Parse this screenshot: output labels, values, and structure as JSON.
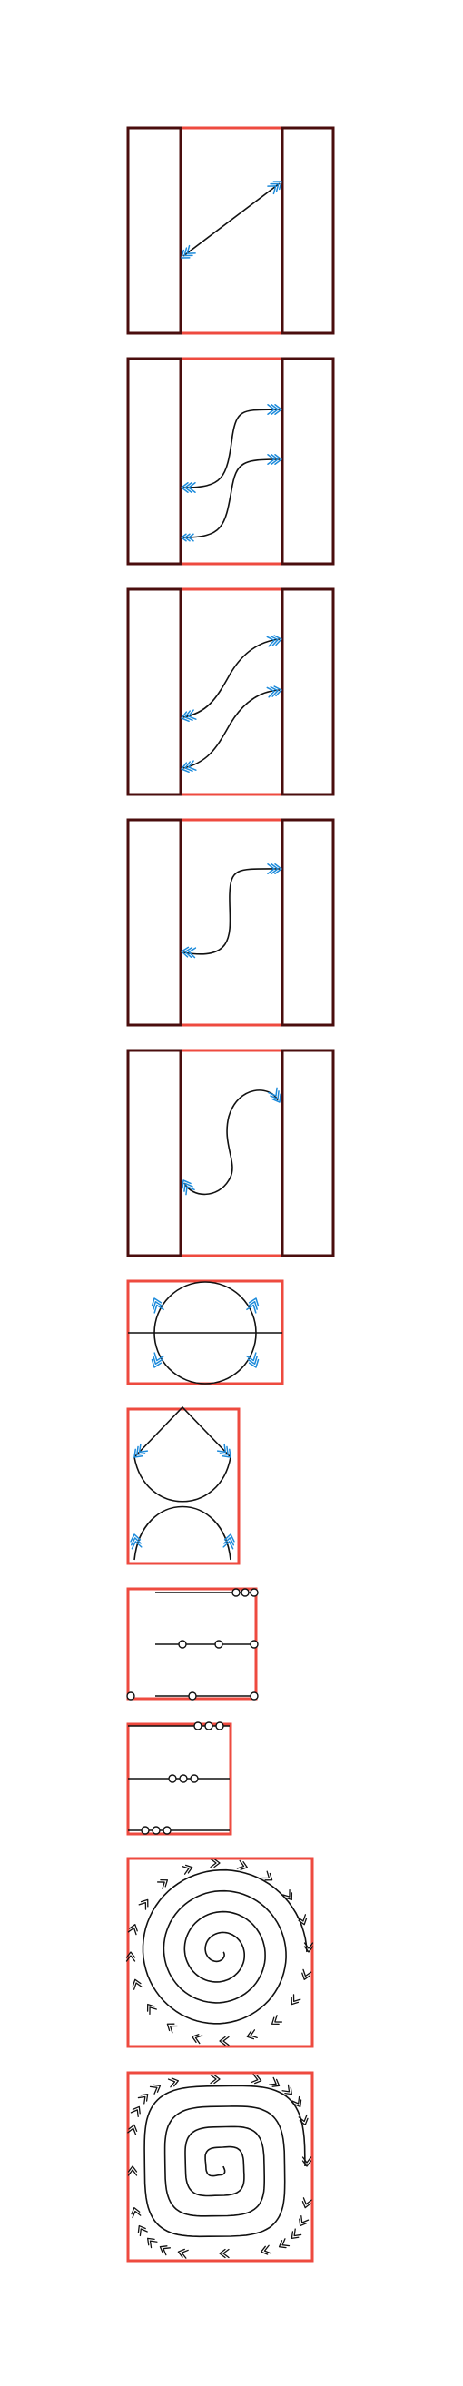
{
  "colors": {
    "frame_red": "#ee4a3f",
    "frame_dark": "#4a0d0d",
    "curve": "#111111",
    "arrow_blue": "#1d8bdb",
    "arrow_black": "#111111",
    "marker_fill": "#ffffff"
  },
  "figure": {
    "panel_count": 11,
    "panels": [
      {
        "kind": "curve-between-rails",
        "arrow_color": "blue",
        "arrow_ends": 2
      },
      {
        "kind": "two-s-curves-between-rails",
        "arrow_color": "blue",
        "arrow_ends": 4
      },
      {
        "kind": "two-sine-curves-between-rails",
        "arrow_color": "blue",
        "arrow_ends": 4
      },
      {
        "kind": "s-curve-between-rails",
        "arrow_color": "blue",
        "arrow_ends": 2
      },
      {
        "kind": "wave-curve-between-rails",
        "arrow_color": "blue",
        "arrow_ends": 2
      },
      {
        "kind": "circle-with-diameter",
        "arrow_color": "blue",
        "arrow_ends": 4
      },
      {
        "kind": "v-and-u-curves",
        "arrow_color": "blue",
        "arrow_ends": 4
      },
      {
        "kind": "lines-with-circle-markers",
        "markers_per_row": [
          3,
          3,
          3
        ]
      },
      {
        "kind": "lines-with-circle-markers",
        "markers_per_row": [
          3,
          3,
          3
        ]
      },
      {
        "kind": "round-spiral",
        "arrow_color": "black"
      },
      {
        "kind": "square-spiral",
        "arrow_color": "black"
      }
    ]
  }
}
